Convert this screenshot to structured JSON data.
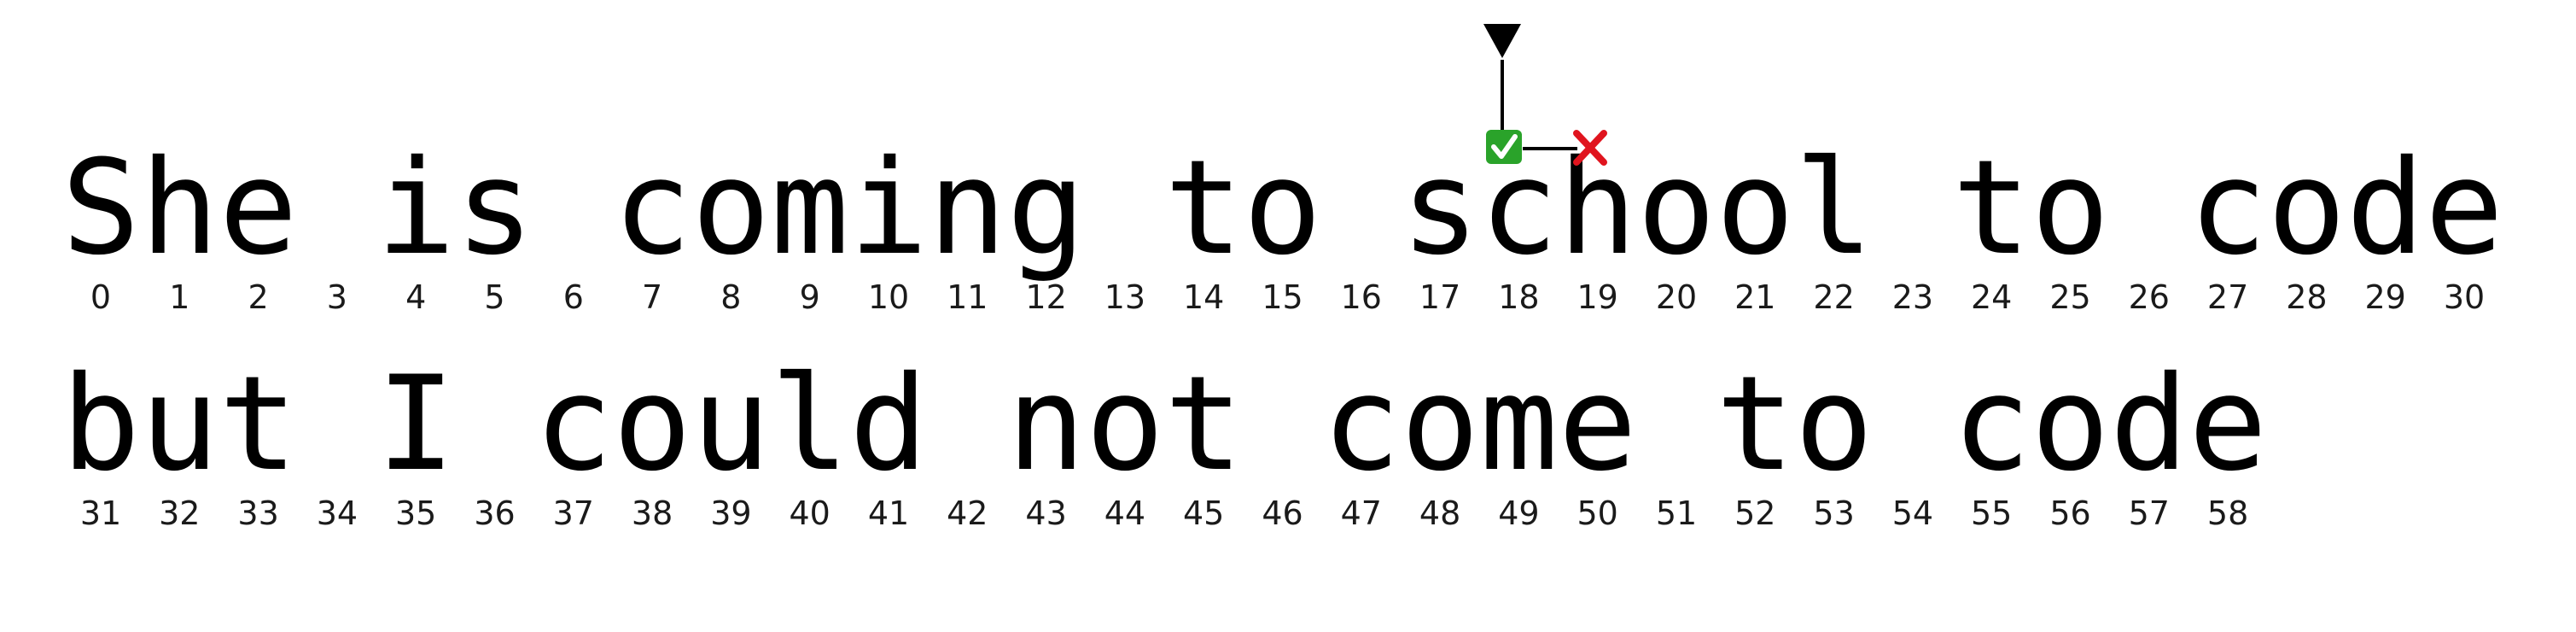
{
  "lines": [
    {
      "text": "She is coming to school to code",
      "start_index": 0
    },
    {
      "text": "but I could not come to code",
      "start_index": 31
    }
  ],
  "pointer": {
    "index": 18,
    "marker_icon": "down-triangle-icon",
    "check_icon": "green-check-icon",
    "cross_icon": "red-cross-icon",
    "check_color": "#2aa32a",
    "cross_color": "#e0141e"
  }
}
